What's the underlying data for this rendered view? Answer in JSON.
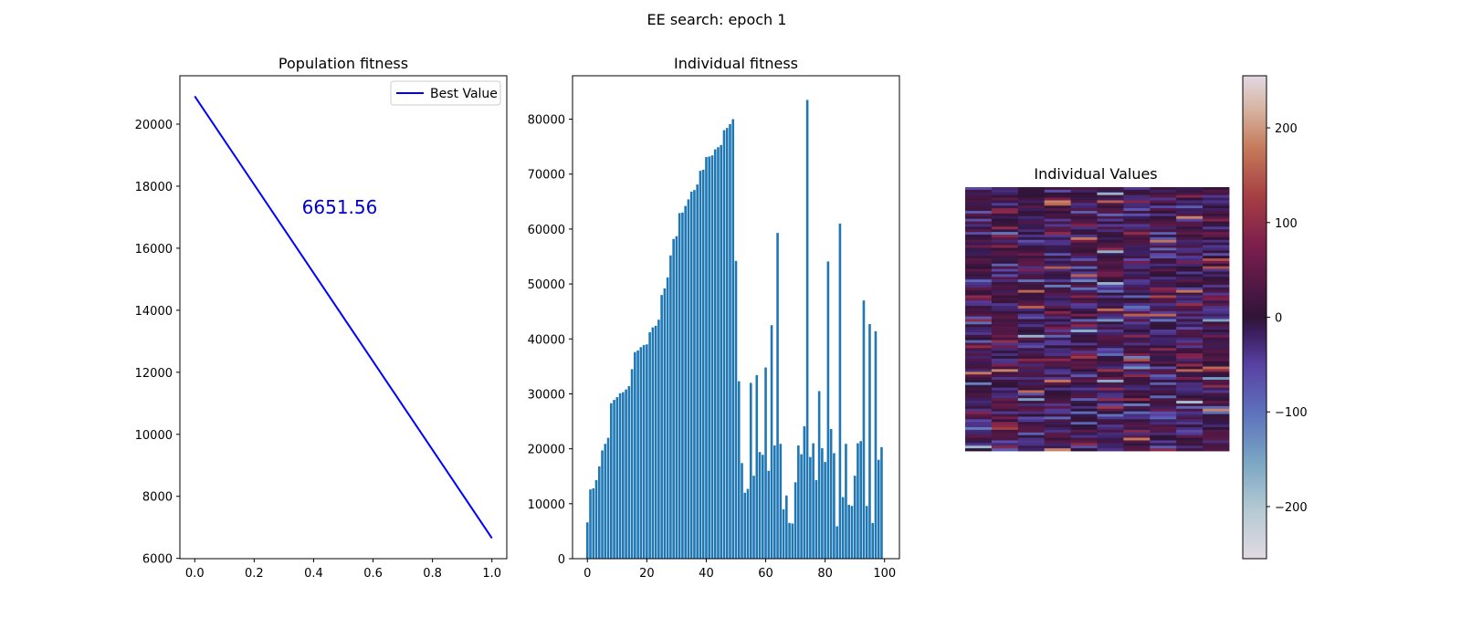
{
  "figure": {
    "suptitle": "EE search: epoch 1"
  },
  "chart_data": [
    {
      "type": "line",
      "title": "Population fitness",
      "x": [
        0,
        1
      ],
      "series": [
        {
          "name": "Best Value",
          "values": [
            20900,
            6651.56
          ],
          "color": "#0000ff"
        }
      ],
      "annotation": {
        "text": "6651.56",
        "color": "#0000cc"
      },
      "xlim": [
        -0.05,
        1.05
      ],
      "ylim": [
        5990,
        21560
      ],
      "xticks": [
        0.0,
        0.2,
        0.4,
        0.6,
        0.8,
        1.0
      ],
      "xtick_labels": [
        "0.0",
        "0.2",
        "0.4",
        "0.6",
        "0.8",
        "1.0"
      ],
      "yticks": [
        6000,
        8000,
        10000,
        12000,
        14000,
        16000,
        18000,
        20000
      ],
      "ytick_labels": [
        "6000",
        "8000",
        "10000",
        "12000",
        "14000",
        "16000",
        "18000",
        "20000"
      ],
      "legend": "top-right",
      "grid": false
    },
    {
      "type": "bar",
      "title": "Individual fitness",
      "x": [
        0,
        1,
        2,
        3,
        4,
        5,
        6,
        7,
        8,
        9,
        10,
        11,
        12,
        13,
        14,
        15,
        16,
        17,
        18,
        19,
        20,
        21,
        22,
        23,
        24,
        25,
        26,
        27,
        28,
        29,
        30,
        31,
        32,
        33,
        34,
        35,
        36,
        37,
        38,
        39,
        40,
        41,
        42,
        43,
        44,
        45,
        46,
        47,
        48,
        49,
        50,
        51,
        52,
        53,
        54,
        55,
        56,
        57,
        58,
        59,
        60,
        61,
        62,
        63,
        64,
        65,
        66,
        67,
        68,
        69,
        70,
        71,
        72,
        73,
        74,
        75,
        76,
        77,
        78,
        79,
        80,
        81,
        82,
        83,
        84,
        85,
        86,
        87,
        88,
        89,
        90,
        91,
        92,
        93,
        94,
        95,
        96,
        97,
        98,
        99
      ],
      "values": [
        6600,
        12600,
        12800,
        14300,
        16800,
        19700,
        20900,
        22000,
        28300,
        28900,
        29400,
        30100,
        30300,
        30800,
        31400,
        34500,
        37600,
        37900,
        38500,
        38900,
        39000,
        41200,
        42100,
        42400,
        43500,
        48000,
        49200,
        51200,
        55200,
        58200,
        58700,
        62900,
        63000,
        64200,
        65400,
        66800,
        67100,
        68100,
        70600,
        70800,
        73100,
        73200,
        73400,
        74500,
        74900,
        75300,
        78000,
        78400,
        79100,
        80000,
        54200,
        32300,
        17400,
        12000,
        12700,
        32000,
        15100,
        33400,
        19400,
        18900,
        34800,
        16000,
        42500,
        20600,
        59300,
        20900,
        9000,
        11500,
        6500,
        6400,
        13900,
        20600,
        19000,
        24100,
        83500,
        18500,
        21000,
        14300,
        30500,
        20100,
        17600,
        54100,
        23600,
        19200,
        5900,
        61000,
        11200,
        20900,
        9800,
        9600,
        15100,
        21000,
        21400,
        47000,
        9600,
        42700,
        6500,
        41400,
        18000,
        20300
      ],
      "color": "#1f77b4",
      "xlim": [
        -5,
        105
      ],
      "ylim": [
        0,
        87900
      ],
      "xticks": [
        0,
        20,
        40,
        60,
        80,
        100
      ],
      "xtick_labels": [
        "0",
        "20",
        "40",
        "60",
        "80",
        "100"
      ],
      "yticks": [
        0,
        10000,
        20000,
        30000,
        40000,
        50000,
        60000,
        70000,
        80000
      ],
      "ytick_labels": [
        "0",
        "10000",
        "20000",
        "30000",
        "40000",
        "50000",
        "60000",
        "70000",
        "80000"
      ],
      "grid": false
    },
    {
      "type": "heatmap",
      "title": "Individual Values",
      "rows": 100,
      "cols": 10,
      "colormap": "twilight",
      "vmin": -255,
      "vmax": 255,
      "colorbar_ticks": [
        -200,
        -100,
        0,
        100,
        200
      ],
      "colorbar_tick_labels": [
        "−200",
        "−100",
        "0",
        "100",
        "200"
      ]
    }
  ]
}
